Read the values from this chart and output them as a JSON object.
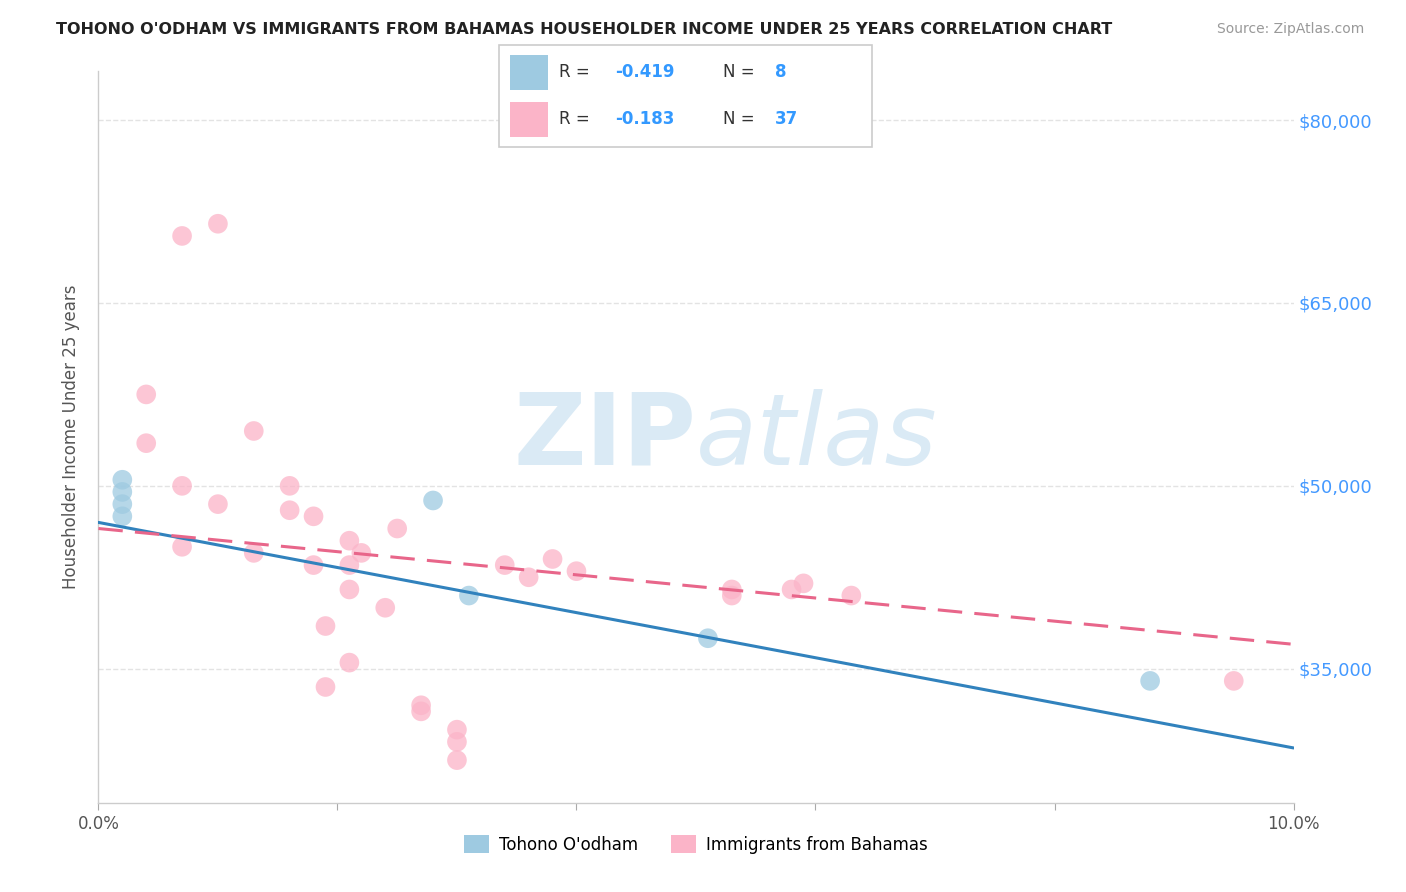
{
  "title": "TOHONO O'ODHAM VS IMMIGRANTS FROM BAHAMAS HOUSEHOLDER INCOME UNDER 25 YEARS CORRELATION CHART",
  "source": "Source: ZipAtlas.com",
  "ylabel": "Householder Income Under 25 years",
  "xmin": 0.0,
  "xmax": 0.1,
  "ymin": 24000,
  "ymax": 84000,
  "yticks": [
    35000,
    50000,
    65000,
    80000
  ],
  "ytick_labels": [
    "$35,000",
    "$50,000",
    "$65,000",
    "$80,000"
  ],
  "xticks": [
    0.0,
    0.02,
    0.04,
    0.06,
    0.08,
    0.1
  ],
  "xtick_labels": [
    "0.0%",
    "",
    "",
    "",
    "",
    "10.0%"
  ],
  "legend_label1": "Tohono O'odham",
  "legend_label2": "Immigrants from Bahamas",
  "R1": -0.419,
  "N1": 8,
  "R2": -0.183,
  "N2": 37,
  "blue_scatter_color": "#9ecae1",
  "pink_scatter_color": "#fbb4c8",
  "blue_line_color": "#3182bd",
  "pink_line_color": "#e8668a",
  "watermark_color": "#daeaf5",
  "blue_points_x": [
    0.002,
    0.002,
    0.002,
    0.002,
    0.028,
    0.031,
    0.051,
    0.088
  ],
  "blue_points_y": [
    50500,
    49500,
    48500,
    47500,
    48800,
    41000,
    37500,
    34000
  ],
  "pink_points_x": [
    0.004,
    0.004,
    0.007,
    0.007,
    0.007,
    0.01,
    0.01,
    0.013,
    0.013,
    0.016,
    0.016,
    0.018,
    0.018,
    0.019,
    0.019,
    0.021,
    0.021,
    0.021,
    0.021,
    0.022,
    0.024,
    0.025,
    0.027,
    0.027,
    0.03,
    0.03,
    0.03,
    0.034,
    0.036,
    0.038,
    0.04,
    0.053,
    0.053,
    0.058,
    0.059,
    0.063,
    0.095
  ],
  "pink_points_y": [
    57500,
    53500,
    50000,
    45000,
    70500,
    71500,
    48500,
    44500,
    54500,
    50000,
    48000,
    47500,
    43500,
    38500,
    33500,
    45500,
    43500,
    41500,
    35500,
    44500,
    40000,
    46500,
    32000,
    31500,
    30000,
    29000,
    27500,
    43500,
    42500,
    44000,
    43000,
    41500,
    41000,
    41500,
    42000,
    41000,
    34000
  ],
  "blue_intercept": 47000,
  "blue_slope": -185000,
  "pink_intercept": 46500,
  "pink_slope": -95000
}
